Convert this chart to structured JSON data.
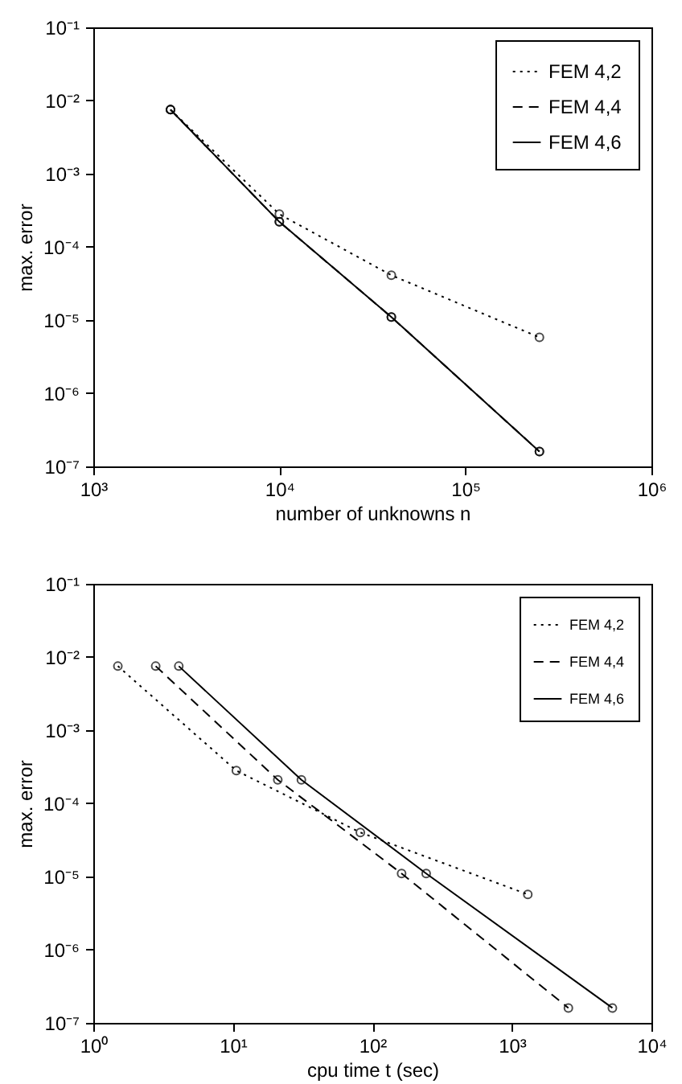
{
  "chart_data": [
    {
      "type": "line",
      "xlabel": "number of unknowns n",
      "ylabel": "max. error",
      "log": "xy",
      "legend": "top right",
      "marker": "circle",
      "grid": false,
      "x": [
        2600,
        10000,
        40000,
        250000
      ],
      "series": [
        {
          "name": "FEM 4,2",
          "color": "#000000",
          "line_style": "dotted",
          "values": [
            0.0075,
            0.00028,
            4.1e-05,
            5.8e-06
          ]
        },
        {
          "name": "FEM 4,4",
          "color": "#000000",
          "line_style": "dashed",
          "values": [
            0.0075,
            0.00022,
            1.1e-05,
            1.6e-07
          ]
        },
        {
          "name": "FEM 4,6",
          "color": "#000000",
          "line_style": "solid",
          "values": [
            0.0075,
            0.00022,
            1.1e-05,
            1.6e-07
          ]
        }
      ],
      "xlim": [
        1000,
        1000000
      ],
      "xticks": [
        {
          "value": 1000,
          "label": "10³"
        },
        {
          "value": 10000,
          "label": "10⁴"
        },
        {
          "value": 100000,
          "label": "10⁵"
        },
        {
          "value": 1000000,
          "label": "10⁶"
        }
      ],
      "ylim": [
        1e-07,
        0.1
      ],
      "yticks": [
        {
          "value": 1e-07,
          "label": "10⁻⁷"
        },
        {
          "value": 1e-06,
          "label": "10⁻⁶"
        },
        {
          "value": 1e-05,
          "label": "10⁻⁵"
        },
        {
          "value": 0.0001,
          "label": "10⁻⁴"
        },
        {
          "value": 0.001,
          "label": "10⁻³"
        },
        {
          "value": 0.01,
          "label": "10⁻²"
        },
        {
          "value": 0.1,
          "label": "10⁻¹"
        }
      ]
    },
    {
      "type": "line",
      "xlabel": "cpu time t (sec)",
      "ylabel": "max. error",
      "log": "xy",
      "legend": "top right",
      "marker": "circle",
      "grid": false,
      "series": [
        {
          "name": "FEM 4,2",
          "color": "#000000",
          "line_style": "dotted",
          "x": [
            1.5,
            10.6,
            82,
            1300
          ],
          "values": [
            0.0075,
            0.00028,
            4e-05,
            5.7e-06
          ]
        },
        {
          "name": "FEM 4,4",
          "color": "#000000",
          "line_style": "dashed",
          "x": [
            2.8,
            21,
            162,
            2540
          ],
          "values": [
            0.0075,
            0.00021,
            1.1e-05,
            1.6e-07
          ]
        },
        {
          "name": "FEM 4,6",
          "color": "#000000",
          "line_style": "solid",
          "x": [
            4.1,
            31,
            243,
            5250
          ],
          "values": [
            0.0075,
            0.00021,
            1.1e-05,
            1.6e-07
          ]
        }
      ],
      "xlim": [
        1,
        10000
      ],
      "xticks": [
        {
          "value": 1,
          "label": "10⁰"
        },
        {
          "value": 10,
          "label": "10¹"
        },
        {
          "value": 100,
          "label": "10²"
        },
        {
          "value": 1000,
          "label": "10³"
        },
        {
          "value": 10000,
          "label": "10⁴"
        }
      ],
      "ylim": [
        1e-07,
        0.1
      ],
      "yticks": [
        {
          "value": 1e-07,
          "label": "10⁻⁷"
        },
        {
          "value": 1e-06,
          "label": "10⁻⁶"
        },
        {
          "value": 1e-05,
          "label": "10⁻⁵"
        },
        {
          "value": 0.0001,
          "label": "10⁻⁴"
        },
        {
          "value": 0.001,
          "label": "10⁻³"
        },
        {
          "value": 0.01,
          "label": "10⁻²"
        },
        {
          "value": 0.1,
          "label": "10⁻¹"
        }
      ]
    }
  ]
}
